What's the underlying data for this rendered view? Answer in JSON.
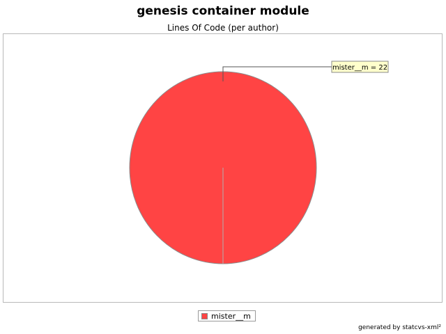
{
  "chart_data": {
    "type": "pie",
    "title": "genesis container module",
    "subtitle": "Lines Of Code (per author)",
    "slices": [
      {
        "label": "mister__m",
        "value": 22,
        "color": "#ff4444",
        "annotation": "mister__m = 22"
      }
    ],
    "legend": {
      "placement": "bottom",
      "entries": [
        "mister__m"
      ]
    }
  },
  "footer": {
    "text": "generated by statcvs-xml²"
  }
}
